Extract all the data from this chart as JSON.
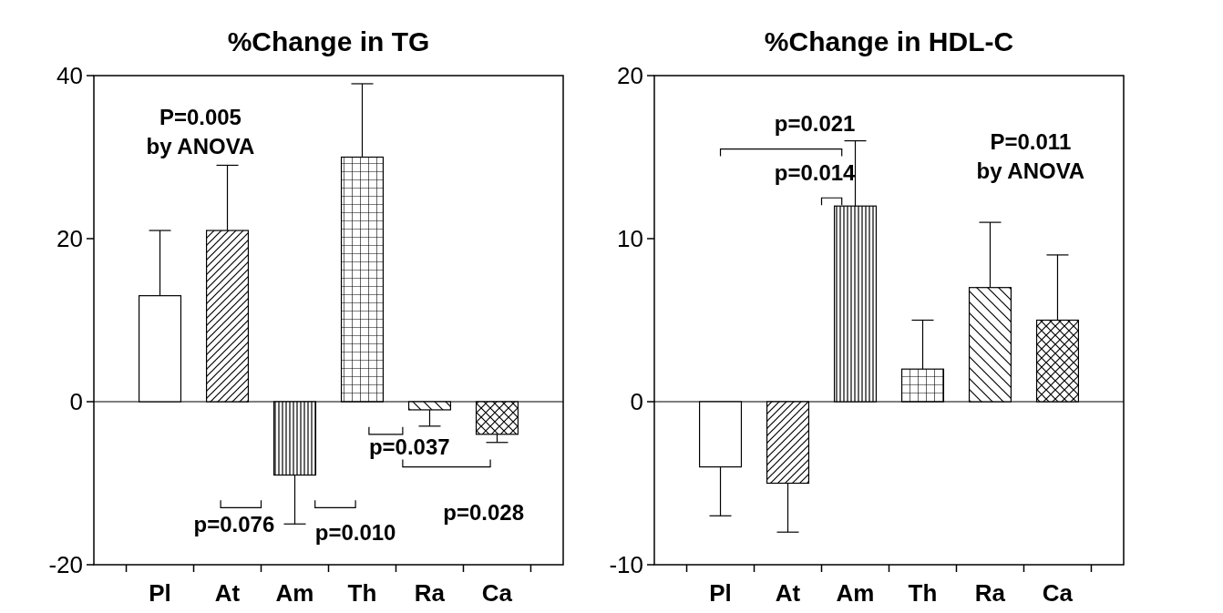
{
  "chart_data": [
    {
      "type": "bar",
      "title": "%Change in TG",
      "categories": [
        "Pl",
        "At",
        "Am",
        "Th",
        "Ra",
        "Ca"
      ],
      "values": [
        13,
        21,
        -9,
        30,
        -1,
        -4
      ],
      "errors": [
        [
          13,
          21
        ],
        [
          21,
          29
        ],
        [
          -15,
          -9
        ],
        [
          30,
          39
        ],
        [
          -3,
          -1
        ],
        [
          -5,
          -4
        ]
      ],
      "color": "#ffffff",
      "ylim": [
        -20,
        40
      ],
      "yticks": [
        -20,
        0,
        20,
        40
      ],
      "annotations": [
        "P=0.005\nby ANOVA",
        "p=0.076",
        "p=0.010",
        "p=0.037",
        "p=0.028"
      ]
    },
    {
      "type": "bar",
      "title": "%Change in HDL-C",
      "categories": [
        "Pl",
        "At",
        "Am",
        "Th",
        "Ra",
        "Ca"
      ],
      "values": [
        -4,
        -5,
        12,
        2,
        7,
        5
      ],
      "errors": [
        [
          -7,
          -4
        ],
        [
          -8,
          -5
        ],
        [
          12,
          16
        ],
        [
          2,
          5
        ],
        [
          7,
          11
        ],
        [
          5,
          9
        ]
      ],
      "color": "#ffffff",
      "ylim": [
        -10,
        20
      ],
      "yticks": [
        -10,
        0,
        10,
        20
      ],
      "annotations": [
        "P=0.011\nby ANOVA",
        "p=0.021",
        "p=0.014"
      ]
    }
  ]
}
